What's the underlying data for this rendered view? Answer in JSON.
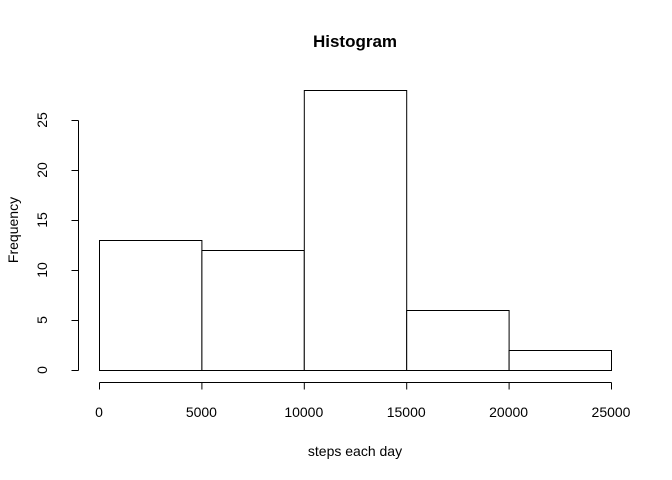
{
  "chart_data": {
    "type": "bar",
    "title": "Histogram",
    "xlabel": "steps each day",
    "ylabel": "Frequency",
    "bins": [
      {
        "from": 0,
        "to": 5000,
        "count": 13
      },
      {
        "from": 5000,
        "to": 10000,
        "count": 12
      },
      {
        "from": 10000,
        "to": 15000,
        "count": 28
      },
      {
        "from": 15000,
        "to": 20000,
        "count": 6
      },
      {
        "from": 20000,
        "to": 25000,
        "count": 2
      }
    ],
    "xlim": [
      0,
      25000
    ],
    "ylim": [
      0,
      28
    ],
    "x_ticks": [
      0,
      5000,
      10000,
      15000,
      20000,
      25000
    ],
    "x_tick_labels": [
      "0",
      "5000",
      "10000",
      "15000",
      "20000",
      "25000"
    ],
    "y_ticks": [
      0,
      5,
      10,
      15,
      20,
      25
    ],
    "y_tick_labels": [
      "0",
      "5",
      "10",
      "15",
      "20",
      "25"
    ],
    "grid": false,
    "colors": {
      "bar_fill": "#ffffff",
      "bar_stroke": "#000000"
    }
  }
}
